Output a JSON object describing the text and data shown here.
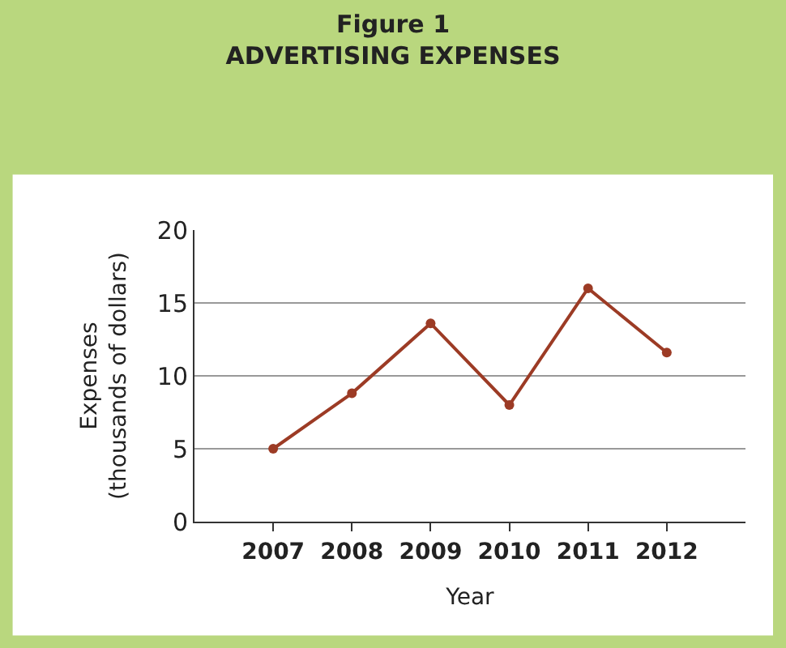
{
  "chart_data": {
    "type": "line",
    "title": "Figure 1\nADVERTISING EXPENSES",
    "xlabel": "Year",
    "ylabel": "Expenses\n(thousands of dollars)",
    "categories": [
      "2007",
      "2008",
      "2009",
      "2010",
      "2011",
      "2012"
    ],
    "series": [
      {
        "color": "#9c3b25",
        "values": [
          5,
          8.8,
          13.6,
          8,
          16,
          11.6
        ]
      }
    ],
    "ylim": [
      0,
      20
    ],
    "yticks": [
      0,
      5,
      10,
      15,
      20
    ],
    "grid": "y",
    "marker": "circle",
    "line_style": "solid",
    "legend": false
  }
}
